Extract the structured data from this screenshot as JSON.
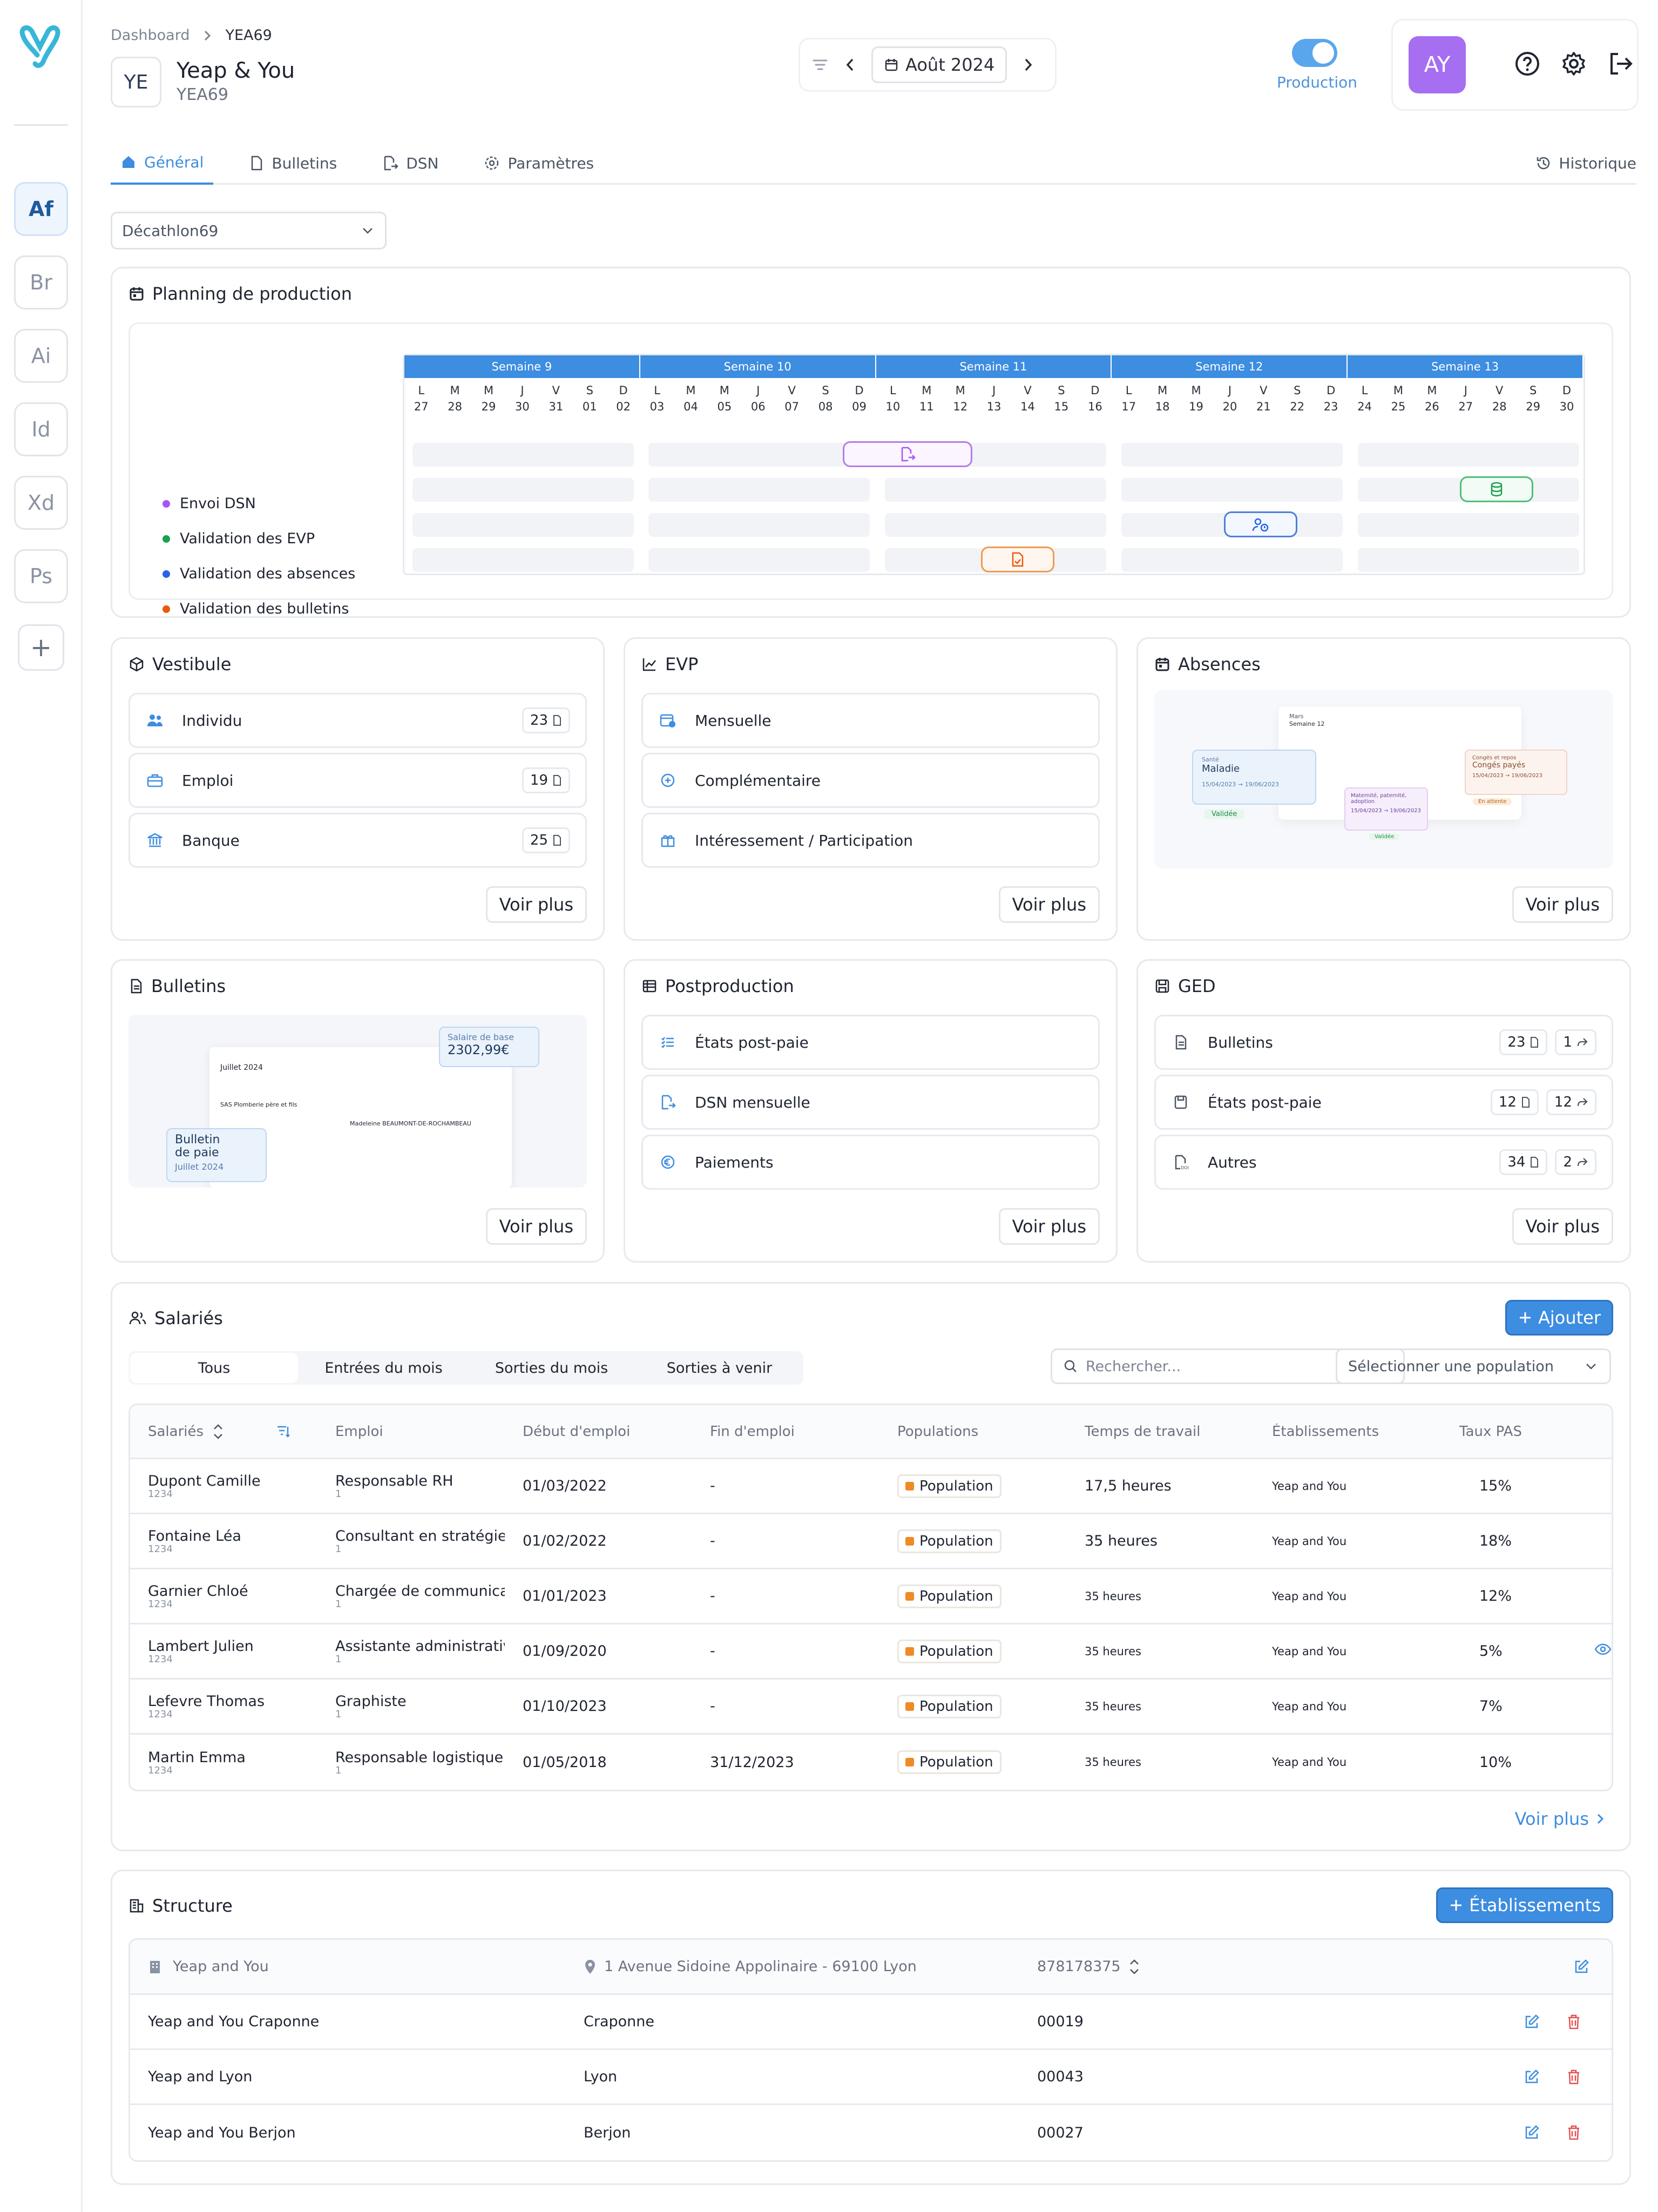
{
  "sidebar": {
    "apps": [
      {
        "label": "Af",
        "active": true
      },
      {
        "label": "Br",
        "active": false
      },
      {
        "label": "Ai",
        "active": false
      },
      {
        "label": "Id",
        "active": false
      },
      {
        "label": "Xd",
        "active": false
      },
      {
        "label": "Ps",
        "active": false
      }
    ],
    "add_label": "+"
  },
  "header": {
    "breadcrumb": {
      "root": "Dashboard",
      "current": "YEA69"
    },
    "company": {
      "initials": "YE",
      "name": "Yeap & You",
      "code": "YEA69"
    },
    "period": "Août 2024",
    "toggle_label": "Production",
    "avatar": "AY"
  },
  "tabs": [
    "Général",
    "Bulletins",
    "DSN",
    "Paramètres"
  ],
  "history_label": "Historique",
  "establishment_select": "Décathlon69",
  "planning": {
    "title": "Planning de production",
    "weeks": [
      "Semaine 9",
      "Semaine 10",
      "Semaine 11",
      "Semaine 12",
      "Semaine 13"
    ],
    "day_letters": [
      "L",
      "M",
      "M",
      "J",
      "V",
      "S",
      "D",
      "L",
      "M",
      "M",
      "J",
      "V",
      "S",
      "D",
      "L",
      "M",
      "M",
      "J",
      "V",
      "S",
      "D",
      "L",
      "M",
      "M",
      "J",
      "V",
      "S",
      "D",
      "L",
      "M",
      "M",
      "J",
      "V",
      "S",
      "D"
    ],
    "day_numbers": [
      "27",
      "28",
      "29",
      "30",
      "31",
      "01",
      "02",
      "03",
      "04",
      "05",
      "06",
      "07",
      "08",
      "09",
      "10",
      "11",
      "12",
      "13",
      "14",
      "15",
      "16",
      "17",
      "18",
      "19",
      "20",
      "21",
      "22",
      "23",
      "24",
      "25",
      "26",
      "27",
      "28",
      "29",
      "30"
    ],
    "legend": [
      {
        "label": "Envoi DSN",
        "color": "#a855f7"
      },
      {
        "label": "Validation des EVP",
        "color": "#16a34a"
      },
      {
        "label": "Validation des absences",
        "color": "#2563eb"
      },
      {
        "label": "Validation des bulletins",
        "color": "#ea580c"
      }
    ]
  },
  "vestibule": {
    "title": "Vestibule",
    "items": [
      {
        "label": "Individu",
        "count": "23"
      },
      {
        "label": "Emploi",
        "count": "19"
      },
      {
        "label": "Banque",
        "count": "25"
      }
    ],
    "more": "Voir plus"
  },
  "evp": {
    "title": "EVP",
    "items": [
      "Mensuelle",
      "Complémentaire",
      "Intéressement / Participation"
    ],
    "more": "Voir plus"
  },
  "absences": {
    "title": "Absences",
    "more": "Voir plus",
    "preview": {
      "month": "Mars",
      "week": "Semaine 12",
      "card1": {
        "tag": "Santé",
        "title": "Maladie",
        "dates": "15/04/2023 → 19/06/2023",
        "status": "Validée"
      },
      "card2": {
        "title": "Maternité, paternité, adoption",
        "dates": "15/04/2023 → 19/06/2023",
        "status": "Validée"
      },
      "card3": {
        "tag": "Congés et repos",
        "title": "Congés payés",
        "dates": "15/04/2023 → 19/06/2023",
        "status": "En attente"
      }
    }
  },
  "bulletins": {
    "title": "Bulletins",
    "more": "Voir plus",
    "preview": {
      "salary_label": "Salaire de base",
      "salary_value": "2302,99€",
      "badge_title": "Bulletin de paie",
      "badge_date": "Juillet 2024",
      "doc_month": "Juillet 2024",
      "doc_company": "SAS Plomberie père et fils",
      "doc_person": "Madeleine BEAUMONT-DE-ROCHAMBEAU"
    }
  },
  "postproduction": {
    "title": "Postproduction",
    "items": [
      "États post-paie",
      "DSN mensuelle",
      "Paiements"
    ],
    "more": "Voir plus"
  },
  "ged": {
    "title": "GED",
    "items": [
      {
        "label": "Bulletins",
        "docs": "23",
        "shared": "1"
      },
      {
        "label": "États post-paie",
        "docs": "12",
        "shared": "12"
      },
      {
        "label": "Autres",
        "docs": "34",
        "shared": "2"
      }
    ],
    "more": "Voir plus"
  },
  "salaries": {
    "title": "Salariés",
    "add_label": "Ajouter",
    "filters": [
      "Tous",
      "Entrées du mois",
      "Sorties du mois",
      "Sorties à venir"
    ],
    "search_placeholder": "Rechercher...",
    "population_placeholder": "Sélectionner une population",
    "columns": [
      "Salariés",
      "Emploi",
      "Début d'emploi",
      "Fin d'emploi",
      "Populations",
      "Temps de travail",
      "Établissements",
      "Taux PAS"
    ],
    "rows": [
      {
        "name": "Dupont Camille",
        "id": "1234",
        "job": "Responsable RH",
        "job_id": "1",
        "start": "01/03/2022",
        "end": "-",
        "population": "Population",
        "time": "17,5 heures",
        "estab": "Yeap and You",
        "pas": "15%"
      },
      {
        "name": "Fontaine Léa",
        "id": "1234",
        "job": "Consultant en stratégie",
        "job_id": "1",
        "start": "01/02/2022",
        "end": "-",
        "population": "Population",
        "time": "35 heures",
        "estab": "Yeap and You",
        "pas": "18%"
      },
      {
        "name": "Garnier  Chloé",
        "id": "1234",
        "job": "Chargée de communica",
        "job_id": "1",
        "start": "01/01/2023",
        "end": "-",
        "population": "Population",
        "time": "35 heures",
        "estab": "Yeap and You",
        "pas": "12%"
      },
      {
        "name": "Lambert Julien",
        "id": "1234",
        "job": "Assistante administrativ",
        "job_id": "1",
        "start": "01/09/2020",
        "end": "-",
        "population": "Population",
        "time": "35 heures",
        "estab": "Yeap and You",
        "pas": "5%"
      },
      {
        "name": "Lefevre Thomas",
        "id": "1234",
        "job": "Graphiste",
        "job_id": "1",
        "start": "01/10/2023",
        "end": "-",
        "population": "Population",
        "time": "35 heures",
        "estab": "Yeap and You",
        "pas": "7%"
      },
      {
        "name": "Martin Emma",
        "id": "1234",
        "job": "Responsable logistique",
        "job_id": "1",
        "start": "01/05/2018",
        "end": "31/12/2023",
        "population": "Population",
        "time": "35 heures",
        "estab": "Yeap and You",
        "pas": "10%"
      }
    ],
    "more": "Voir plus"
  },
  "structure": {
    "title": "Structure",
    "add_label": "Établissements",
    "head": {
      "name": "Yeap and You",
      "address": "1 Avenue Sidoine Appolinaire - 69100 Lyon",
      "siret": "878178375"
    },
    "rows": [
      {
        "name": "Yeap and You Craponne",
        "city": "Craponne",
        "code": "00019"
      },
      {
        "name": "Yeap and Lyon",
        "city": "Lyon",
        "code": "00043"
      },
      {
        "name": "Yeap and You Berjon",
        "city": "Berjon",
        "code": "00027"
      }
    ]
  }
}
